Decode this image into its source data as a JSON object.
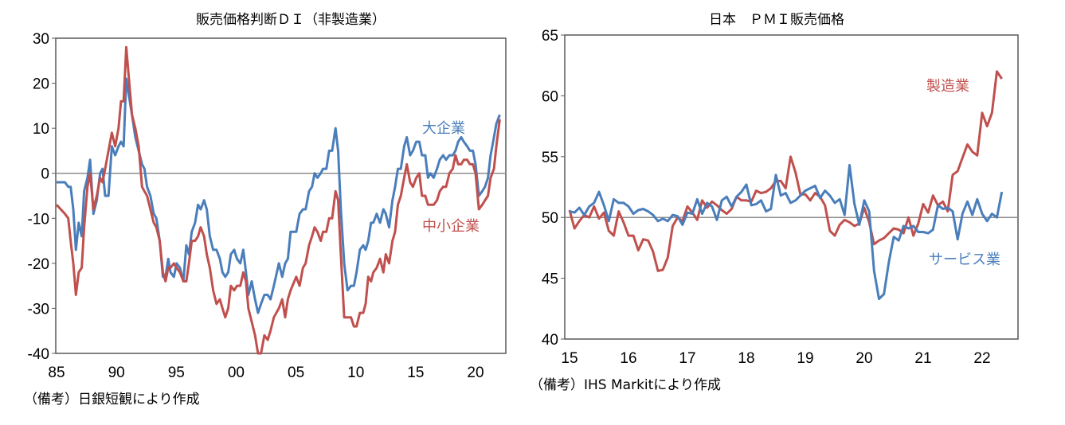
{
  "colors": {
    "blue": "#4a7ebb",
    "red": "#c0504d",
    "ref": "#8c8c8c",
    "frame": "#595959"
  },
  "chart_data": [
    {
      "type": "line",
      "title": "販売価格判断ＤＩ（非製造業）",
      "note": "（備考）日銀短観により作成",
      "xlabel": "",
      "ylabel": "",
      "xlim": [
        1985,
        2022.5
      ],
      "ylim": [
        -40,
        30
      ],
      "y_ticks": [
        30,
        20,
        10,
        0,
        -10,
        -20,
        -30,
        -40
      ],
      "y_tick_labels": [
        "30",
        "20",
        "10",
        "0",
        "-10",
        "-20",
        "-30",
        "-40"
      ],
      "x_ticks": [
        1985,
        1990,
        1995,
        2000,
        2005,
        2010,
        2015,
        2020
      ],
      "x_tick_labels": [
        "85",
        "90",
        "95",
        "00",
        "05",
        "10",
        "15",
        "20"
      ],
      "reference_line": 0,
      "grid": false,
      "x": [
        1985.0,
        1985.7,
        1985.98,
        1986.18,
        1986.4,
        1986.62,
        1986.85,
        1987.1,
        1987.3,
        1987.58,
        1987.8,
        1988.08,
        1988.36,
        1988.64,
        1988.84,
        1989.06,
        1989.34,
        1989.62,
        1989.9,
        1990.18,
        1990.38,
        1990.6,
        1990.82,
        1991.3,
        1991.58,
        1991.86,
        1992.14,
        1992.34,
        1992.56,
        1992.84,
        1993.12,
        1993.34,
        1993.62,
        1993.88,
        1994.1,
        1994.33,
        1994.52,
        1994.8,
        1995.03,
        1995.31,
        1995.59,
        1995.84,
        1996.06,
        1996.29,
        1996.57,
        1996.82,
        1997.04,
        1997.32,
        1997.55,
        1997.8,
        1998.08,
        1998.36,
        1998.64,
        1998.86,
        1999.09,
        1999.34,
        1999.56,
        1999.84,
        2000.07,
        2000.35,
        2000.6,
        2000.82,
        2001.02,
        2001.3,
        2001.58,
        2001.83,
        2002.08,
        2002.36,
        2002.64,
        2002.87,
        2003.15,
        2003.57,
        2003.85,
        2004.1,
        2004.32,
        2004.55,
        2005.02,
        2005.3,
        2005.58,
        2005.81,
        2006.09,
        2006.34,
        2006.56,
        2006.79,
        2007.07,
        2007.26,
        2007.54,
        2007.77,
        2008.02,
        2008.3,
        2008.52,
        2008.75,
        2009.03,
        2009.31,
        2009.59,
        2009.84,
        2010.06,
        2010.34,
        2010.62,
        2010.82,
        2011.04,
        2011.27,
        2011.46,
        2011.74,
        2012.02,
        2012.3,
        2012.5,
        2012.78,
        2013.06,
        2013.28,
        2013.51,
        2013.76,
        2014.04,
        2014.26,
        2014.54,
        2014.77,
        2015.05,
        2015.3,
        2015.52,
        2015.8,
        2016.03,
        2016.22,
        2016.5,
        2016.78,
        2017.01,
        2017.29,
        2017.54,
        2017.82,
        2018.1,
        2018.32,
        2018.55,
        2018.8,
        2019.02,
        2019.3,
        2019.53,
        2019.78,
        2020.0,
        2020.28,
        2020.56,
        2020.79,
        2021.04,
        2021.26,
        2021.54,
        2021.74,
        2022.02
      ],
      "series": [
        {
          "name": "大企業",
          "color": "#4a7ebb",
          "values": [
            -2,
            -2,
            -3,
            -3,
            -8,
            -17,
            -11,
            -14,
            -4,
            -1,
            3,
            -9,
            -6,
            0,
            1,
            -5,
            -5,
            6,
            4,
            6,
            7,
            6,
            21,
            13,
            8,
            5,
            2,
            1,
            -3,
            -5,
            -9,
            -10,
            -15,
            -23,
            -23,
            -19,
            -22,
            -23,
            -20,
            -21,
            -24,
            -16,
            -18,
            -13,
            -11,
            -7,
            -8,
            -6,
            -8,
            -14,
            -17,
            -17,
            -19,
            -22,
            -23,
            -22,
            -18,
            -17,
            -19,
            -20,
            -17,
            -22,
            -27,
            -24,
            -28,
            -31,
            -29,
            -27,
            -27,
            -28,
            -25,
            -20,
            -23,
            -20,
            -19,
            -13,
            -13,
            -9,
            -8,
            -8,
            -4,
            -3,
            0,
            -1,
            0,
            1,
            1,
            5,
            5,
            10,
            5,
            -8,
            -20,
            -26,
            -25,
            -25,
            -22,
            -17,
            -16,
            -17,
            -15,
            -11,
            -11,
            -9,
            -11,
            -8,
            -9,
            -12,
            -6,
            -3,
            1,
            1,
            6,
            8,
            4,
            5,
            7,
            7,
            4,
            4,
            -1,
            0,
            -1,
            1,
            3,
            4,
            3,
            4,
            4,
            5,
            7,
            8,
            7,
            6,
            5,
            5,
            2,
            -5,
            -4,
            -3,
            -1,
            4,
            8,
            11,
            13
          ]
        },
        {
          "name": "中小企業",
          "color": "#c0504d",
          "values": [
            -7,
            -9,
            -10,
            -15,
            -20,
            -27,
            -22,
            -21,
            -12,
            -3,
            0,
            -8,
            -5,
            -1,
            -2,
            1,
            5,
            9,
            6,
            10,
            16,
            16,
            28,
            13,
            10,
            6,
            -3,
            -4,
            -5,
            -8,
            -11,
            -12,
            -15,
            -22,
            -24,
            -21,
            -21,
            -20,
            -21,
            -22,
            -24,
            -24,
            -20,
            -15,
            -15,
            -14,
            -12,
            -14,
            -18,
            -21,
            -26,
            -29,
            -28,
            -30,
            -32,
            -30,
            -25,
            -26,
            -25,
            -25,
            -22,
            -24,
            -30,
            -33,
            -36,
            -40,
            -40,
            -36,
            -37,
            -35,
            -32,
            -30,
            -28,
            -32,
            -28,
            -26,
            -23,
            -25,
            -21,
            -20,
            -16,
            -14,
            -12,
            -13,
            -15,
            -13,
            -13,
            -10,
            -10,
            -4,
            -6,
            -18,
            -32,
            -32,
            -32,
            -34,
            -34,
            -31,
            -31,
            -29,
            -23,
            -24,
            -22,
            -21,
            -19,
            -22,
            -18,
            -20,
            -15,
            -13,
            -7,
            -5,
            -1,
            2,
            -2,
            -3,
            -1,
            0,
            -5,
            -5,
            -7,
            -7,
            -7,
            -6,
            -4,
            -3,
            -3,
            0,
            1,
            4,
            2,
            2,
            3,
            3,
            2,
            2,
            0,
            -8,
            -7,
            -6,
            -5,
            -1,
            1,
            6,
            12
          ]
        }
      ]
    },
    {
      "type": "line",
      "title": "日本　ＰＭＩ販売価格",
      "note": "（備考）IHS Markitにより作成",
      "xlabel": "",
      "ylabel": "",
      "frequency": "monthly",
      "x_start": "2015-01",
      "x_end": "2022-05",
      "ylim": [
        40,
        65
      ],
      "y_ticks": [
        65,
        60,
        55,
        50,
        45,
        40
      ],
      "y_tick_labels": [
        "65",
        "60",
        "55",
        "50",
        "45",
        "40"
      ],
      "x_ticks": [
        2015,
        2016,
        2017,
        2018,
        2019,
        2020,
        2021,
        2022
      ],
      "x_tick_labels": [
        "15",
        "16",
        "17",
        "18",
        "19",
        "20",
        "21",
        "22"
      ],
      "reference_line": 50,
      "grid": false,
      "series": [
        {
          "name": "製造業",
          "color": "#c0504d",
          "values": [
            50.6,
            49.1,
            49.7,
            50.2,
            50.0,
            50.9,
            49.9,
            50.4,
            48.9,
            48.5,
            50.5,
            49.6,
            48.5,
            48.5,
            47.3,
            48.2,
            48.1,
            47.2,
            45.6,
            45.7,
            46.7,
            49.3,
            50.0,
            49.7,
            50.9,
            50.4,
            49.8,
            51.4,
            50.8,
            51.3,
            51.0,
            50.6,
            50.3,
            50.7,
            51.7,
            51.4,
            51.4,
            51.3,
            52.2,
            52.0,
            52.1,
            52.4,
            53.0,
            53.0,
            52.4,
            55.0,
            53.7,
            51.9,
            51.9,
            51.4,
            52.0,
            51.7,
            51.0,
            48.9,
            48.5,
            49.4,
            49.8,
            49.6,
            49.3,
            49.5,
            50.8,
            49.6,
            47.8,
            48.1,
            48.3,
            48.7,
            49.1,
            49.0,
            48.7,
            50.0,
            48.5,
            49.5,
            51.1,
            50.4,
            51.8,
            51.0,
            51.3,
            50.5,
            53.5,
            53.8,
            54.9,
            56.0,
            55.4,
            55.1,
            58.6,
            57.5,
            58.6,
            62.0,
            61.4
          ]
        },
        {
          "name": "サービス業",
          "color": "#4a7ebb",
          "values": [
            50.5,
            50.4,
            50.8,
            50.2,
            50.9,
            51.2,
            52.1,
            51.0,
            49.7,
            51.5,
            51.2,
            51.2,
            50.9,
            50.3,
            50.6,
            50.7,
            50.5,
            50.2,
            49.7,
            49.9,
            49.7,
            50.2,
            50.1,
            49.4,
            50.4,
            50.3,
            51.5,
            50.3,
            51.2,
            50.9,
            49.8,
            51.4,
            51.7,
            50.9,
            51.7,
            52.1,
            52.7,
            51.0,
            51.1,
            51.4,
            50.5,
            50.7,
            53.5,
            51.8,
            52.0,
            51.2,
            51.4,
            51.8,
            52.2,
            52.4,
            52.6,
            51.6,
            52.2,
            51.8,
            51.2,
            51.5,
            50.2,
            54.3,
            51.1,
            49.4,
            51.4,
            50.5,
            45.6,
            43.3,
            43.7,
            46.3,
            48.4,
            48.1,
            49.3,
            49.1,
            49.3,
            48.8,
            48.8,
            48.7,
            49.0,
            51.0,
            50.7,
            50.8,
            50.5,
            48.2,
            50.3,
            51.3,
            50.2,
            51.5,
            50.3,
            49.7,
            50.3,
            50.0,
            52.1
          ]
        }
      ]
    }
  ]
}
